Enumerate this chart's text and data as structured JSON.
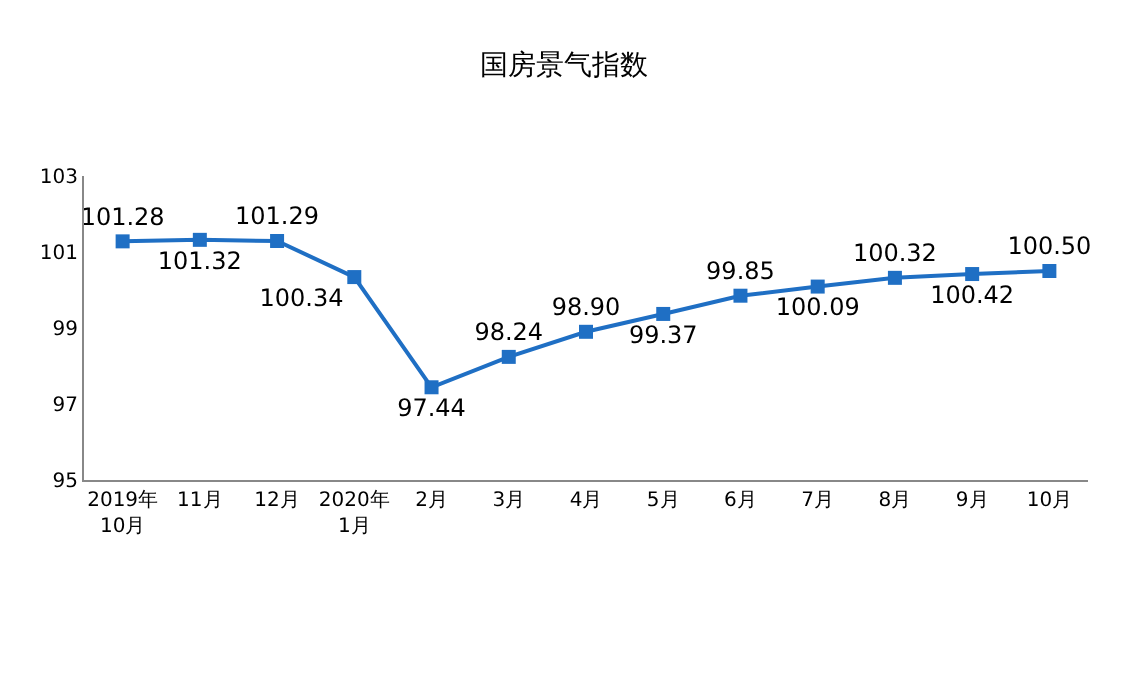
{
  "chart_data": {
    "type": "line",
    "title": "国房景气指数",
    "categories": [
      "2019年\n10月",
      "11月",
      "12月",
      "2020年\n1月",
      "2月",
      "3月",
      "4月",
      "5月",
      "6月",
      "7月",
      "8月",
      "9月",
      "10月"
    ],
    "values": [
      101.28,
      101.32,
      101.29,
      100.34,
      97.44,
      98.24,
      98.9,
      99.37,
      99.85,
      100.09,
      100.32,
      100.42,
      100.5
    ],
    "color": "#1f6fc4",
    "ylim": [
      95,
      103
    ],
    "yticks": [
      95,
      97,
      99,
      101,
      103
    ],
    "marker": "square",
    "line_style": "solid",
    "value_labels": [
      "101.28",
      "101.32",
      "101.29",
      "100.34",
      "97.44",
      "98.24",
      "98.90",
      "99.37",
      "99.85",
      "100.09",
      "100.32",
      "100.42",
      "100.50"
    ]
  }
}
